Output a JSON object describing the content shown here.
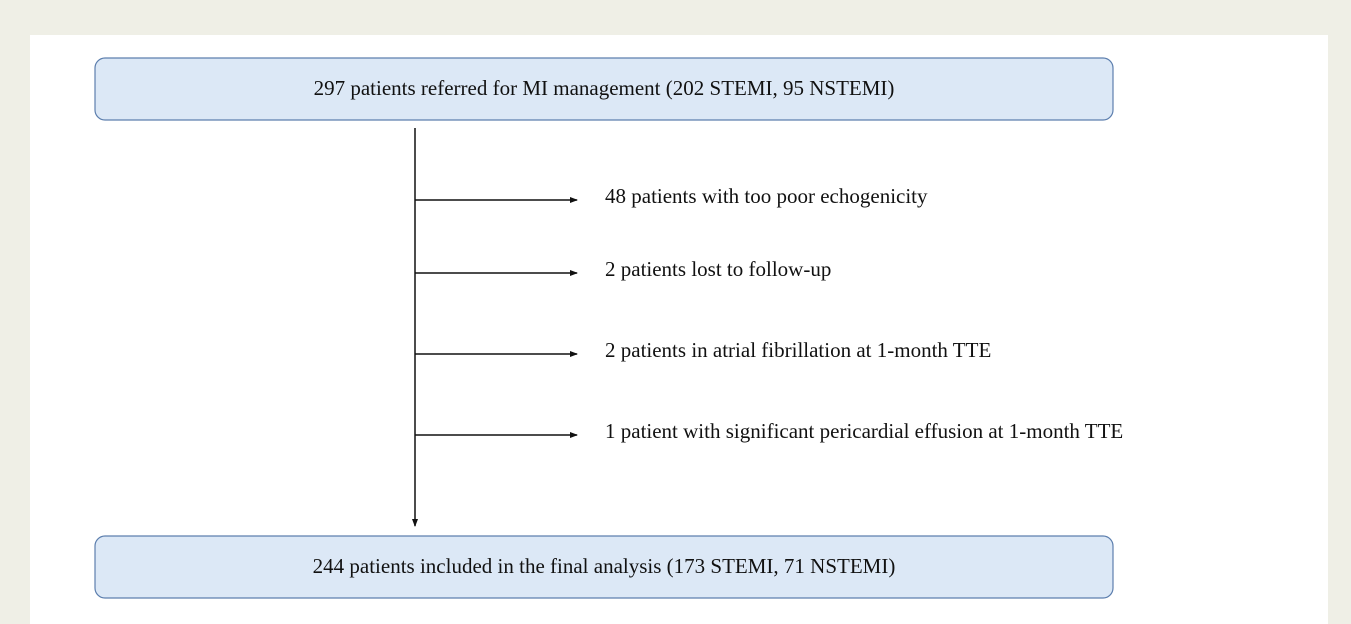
{
  "nodes": [
    {
      "label": "297 patients referred for MI management (202 STEMI, 95 NSTEMI)"
    },
    {
      "label": "244 patients included in the final analysis (173 STEMI, 71 NSTEMI)"
    }
  ],
  "exclusions": [
    "48 patients with too poor echogenicity",
    "2 patients lost to follow-up",
    "2 patients in atrial fibrillation at 1-month TTE",
    "1 patient with significant pericardial effusion at 1-month TTE"
  ]
}
